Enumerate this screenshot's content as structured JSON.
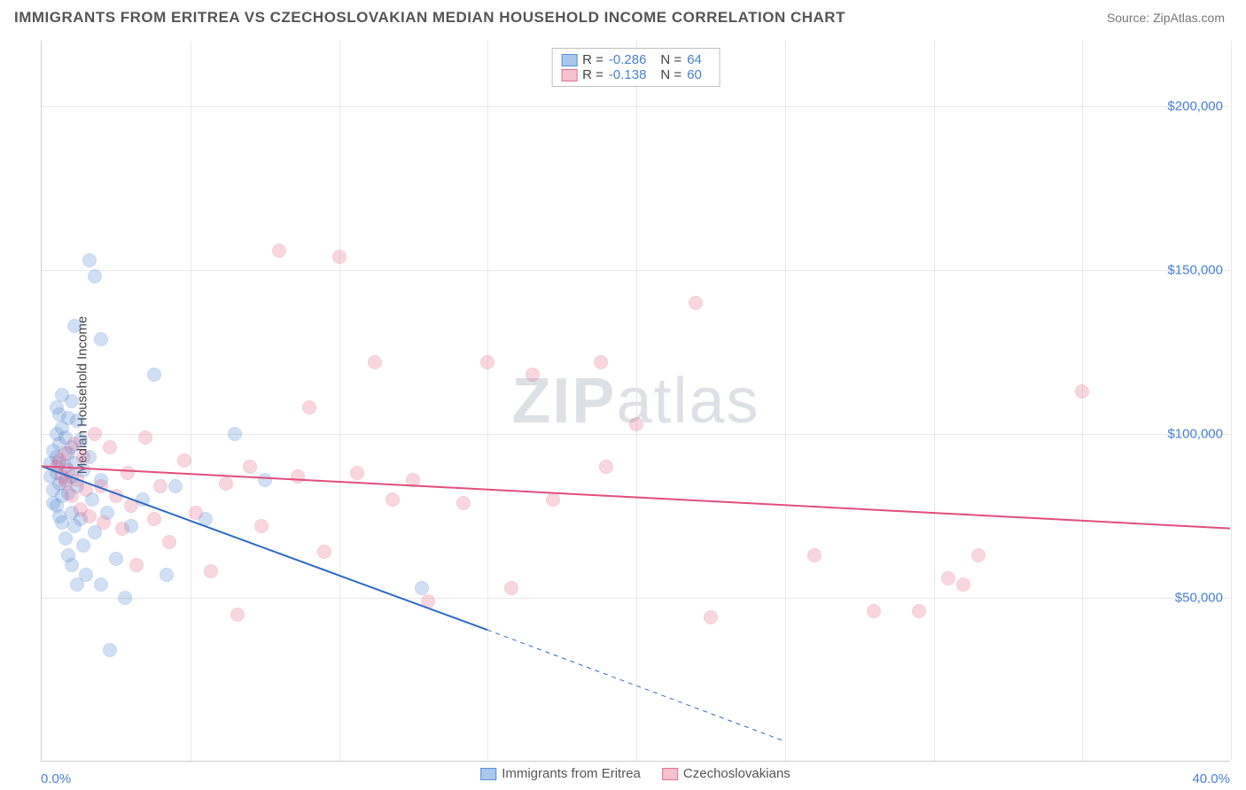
{
  "header": {
    "title": "IMMIGRANTS FROM ERITREA VS CZECHOSLOVAKIAN MEDIAN HOUSEHOLD INCOME CORRELATION CHART",
    "source_prefix": "Source: ",
    "source": "ZipAtlas.com"
  },
  "chart": {
    "type": "scatter",
    "ylabel": "Median Household Income",
    "xlim": [
      0,
      40
    ],
    "ylim": [
      0,
      220000
    ],
    "x_tick_positions": [
      0,
      5,
      10,
      15,
      20,
      25,
      30,
      35,
      40
    ],
    "x_tick_labels_shown": {
      "left": "0.0%",
      "right": "40.0%"
    },
    "y_ticks": [
      {
        "v": 50000,
        "label": "$50,000"
      },
      {
        "v": 100000,
        "label": "$100,000"
      },
      {
        "v": 150000,
        "label": "$150,000"
      },
      {
        "v": 200000,
        "label": "$200,000"
      }
    ],
    "grid_color": "#e8e8e8",
    "axis_color": "#d0d0d0",
    "background_color": "#ffffff",
    "tick_label_color": "#4a80d6",
    "marker_radius": 8,
    "marker_stroke_width": 1.5,
    "marker_fill_opacity": 0.28,
    "watermark": "ZIPatlas"
  },
  "legend_top": [
    {
      "swatch_fill": "#aac6ec",
      "swatch_stroke": "#5b8fd6",
      "r_label": "R =",
      "r": "-0.286",
      "n_label": "N =",
      "n": "64"
    },
    {
      "swatch_fill": "#f6c1cf",
      "swatch_stroke": "#e76f94",
      "r_label": "R =",
      "r": "-0.138",
      "n_label": "N =",
      "n": "60"
    }
  ],
  "legend_bottom": [
    {
      "swatch_fill": "#aac6ec",
      "swatch_stroke": "#5b8fd6",
      "label": "Immigrants from Eritrea"
    },
    {
      "swatch_fill": "#f6c1cf",
      "swatch_stroke": "#e76f94",
      "label": "Czechoslovakians"
    }
  ],
  "series": [
    {
      "name": "Immigrants from Eritrea",
      "marker_fill": "#5b8fd6",
      "marker_stroke": "#3d72c4",
      "trend": {
        "x1": 0,
        "y1": 90000,
        "x2": 15,
        "y2": 40000,
        "color": "#2f6ac4",
        "width": 2,
        "dash_after_x": 15,
        "dash_x2": 25,
        "dash_y2": 6000
      },
      "points_xy": [
        [
          0.3,
          91000
        ],
        [
          0.3,
          87000
        ],
        [
          0.4,
          95000
        ],
        [
          0.4,
          83000
        ],
        [
          0.4,
          79000
        ],
        [
          0.5,
          108000
        ],
        [
          0.5,
          100000
        ],
        [
          0.5,
          93000
        ],
        [
          0.5,
          88000
        ],
        [
          0.5,
          78000
        ],
        [
          0.6,
          106000
        ],
        [
          0.6,
          97000
        ],
        [
          0.6,
          91000
        ],
        [
          0.6,
          85000
        ],
        [
          0.6,
          75000
        ],
        [
          0.7,
          112000
        ],
        [
          0.7,
          102000
        ],
        [
          0.7,
          81000
        ],
        [
          0.7,
          73000
        ],
        [
          0.8,
          99000
        ],
        [
          0.8,
          90000
        ],
        [
          0.8,
          86000
        ],
        [
          0.8,
          68000
        ],
        [
          0.9,
          105000
        ],
        [
          0.9,
          94000
        ],
        [
          0.9,
          82000
        ],
        [
          0.9,
          63000
        ],
        [
          1.0,
          110000
        ],
        [
          1.0,
          96000
        ],
        [
          1.0,
          87000
        ],
        [
          1.0,
          76000
        ],
        [
          1.0,
          60000
        ],
        [
          1.1,
          133000
        ],
        [
          1.1,
          91000
        ],
        [
          1.1,
          72000
        ],
        [
          1.2,
          104000
        ],
        [
          1.2,
          84000
        ],
        [
          1.2,
          54000
        ],
        [
          1.3,
          98000
        ],
        [
          1.3,
          74000
        ],
        [
          1.4,
          89000
        ],
        [
          1.4,
          66000
        ],
        [
          1.5,
          57000
        ],
        [
          1.6,
          153000
        ],
        [
          1.6,
          93000
        ],
        [
          1.7,
          80000
        ],
        [
          1.8,
          148000
        ],
        [
          1.8,
          70000
        ],
        [
          2.0,
          129000
        ],
        [
          2.0,
          86000
        ],
        [
          2.0,
          54000
        ],
        [
          2.2,
          76000
        ],
        [
          2.3,
          34000
        ],
        [
          2.5,
          62000
        ],
        [
          2.8,
          50000
        ],
        [
          3.0,
          72000
        ],
        [
          3.4,
          80000
        ],
        [
          3.8,
          118000
        ],
        [
          4.2,
          57000
        ],
        [
          4.5,
          84000
        ],
        [
          5.5,
          74000
        ],
        [
          6.5,
          100000
        ],
        [
          7.5,
          86000
        ],
        [
          12.8,
          53000
        ]
      ]
    },
    {
      "name": "Czechoslovakians",
      "marker_fill": "#e76f94",
      "marker_stroke": "#d84f7c",
      "trend": {
        "x1": 0,
        "y1": 90000,
        "x2": 40,
        "y2": 71000,
        "color": "#e04f7c",
        "width": 2
      },
      "points_xy": [
        [
          0.5,
          90000
        ],
        [
          0.6,
          92000
        ],
        [
          0.7,
          87000
        ],
        [
          0.8,
          94000
        ],
        [
          0.8,
          85000
        ],
        [
          0.9,
          89000
        ],
        [
          1.0,
          81000
        ],
        [
          1.1,
          97000
        ],
        [
          1.2,
          86000
        ],
        [
          1.3,
          77000
        ],
        [
          1.4,
          93000
        ],
        [
          1.5,
          83000
        ],
        [
          1.6,
          75000
        ],
        [
          1.8,
          100000
        ],
        [
          2.0,
          84000
        ],
        [
          2.1,
          73000
        ],
        [
          2.3,
          96000
        ],
        [
          2.5,
          81000
        ],
        [
          2.7,
          71000
        ],
        [
          2.9,
          88000
        ],
        [
          3.0,
          78000
        ],
        [
          3.2,
          60000
        ],
        [
          3.5,
          99000
        ],
        [
          3.8,
          74000
        ],
        [
          4.0,
          84000
        ],
        [
          4.3,
          67000
        ],
        [
          4.8,
          92000
        ],
        [
          5.2,
          76000
        ],
        [
          5.7,
          58000
        ],
        [
          6.2,
          85000
        ],
        [
          6.6,
          45000
        ],
        [
          7.0,
          90000
        ],
        [
          7.4,
          72000
        ],
        [
          8.0,
          156000
        ],
        [
          8.6,
          87000
        ],
        [
          9.0,
          108000
        ],
        [
          9.5,
          64000
        ],
        [
          10.0,
          154000
        ],
        [
          10.6,
          88000
        ],
        [
          11.2,
          122000
        ],
        [
          11.8,
          80000
        ],
        [
          12.5,
          86000
        ],
        [
          13.0,
          49000
        ],
        [
          14.2,
          79000
        ],
        [
          15.0,
          122000
        ],
        [
          15.8,
          53000
        ],
        [
          16.5,
          118000
        ],
        [
          17.2,
          80000
        ],
        [
          18.8,
          122000
        ],
        [
          20.0,
          103000
        ],
        [
          22.0,
          140000
        ],
        [
          22.5,
          44000
        ],
        [
          26.0,
          63000
        ],
        [
          28.0,
          46000
        ],
        [
          29.5,
          46000
        ],
        [
          31.0,
          54000
        ],
        [
          31.5,
          63000
        ],
        [
          35.0,
          113000
        ],
        [
          30.5,
          56000
        ],
        [
          19.0,
          90000
        ]
      ]
    }
  ]
}
